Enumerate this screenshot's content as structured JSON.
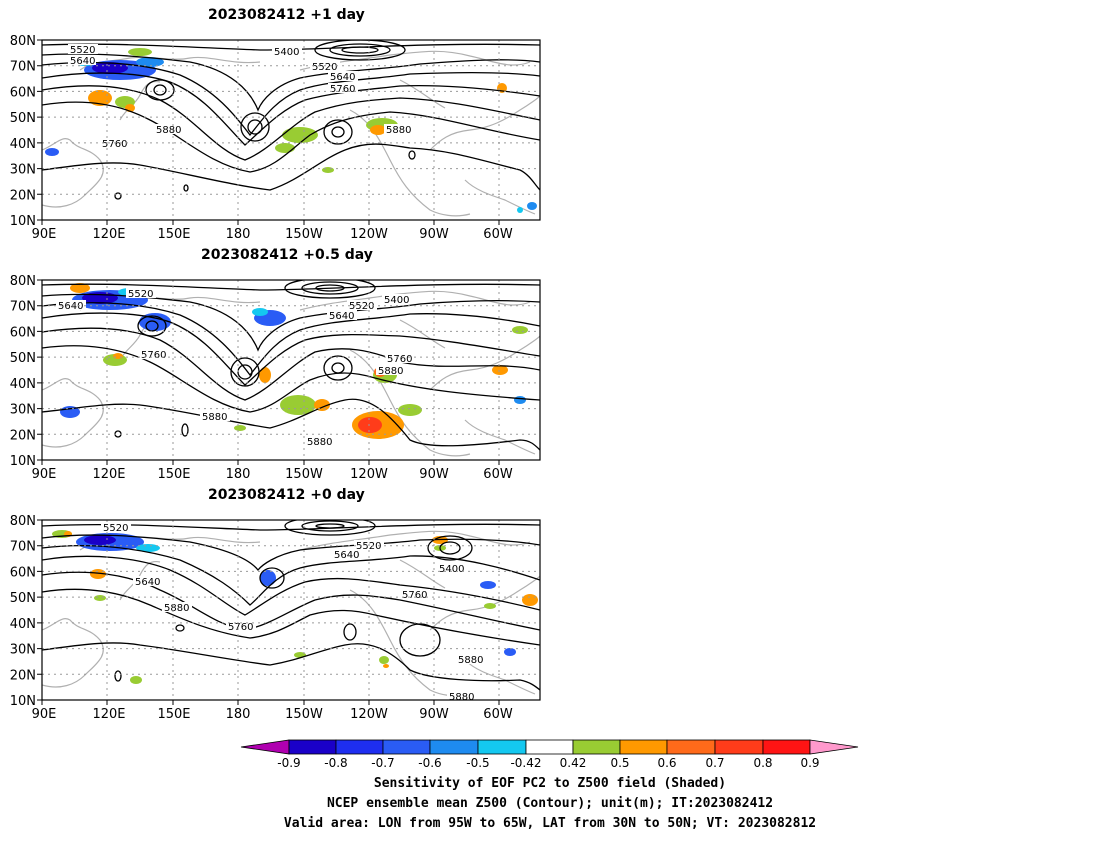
{
  "colors": {
    "coast": "#b0b0b0",
    "contour": "#000000",
    "scale": [
      "#b000b0",
      "#1a00c8",
      "#1e2ef0",
      "#2a5cf5",
      "#1e8bf0",
      "#14c8f0",
      "#ffffff",
      "#99cc33",
      "#ff9900",
      "#ff6a1a",
      "#ff3c1a",
      "#ff1414",
      "#ff99cc"
    ]
  },
  "panels": [
    {
      "title": "2023082412  +1 day",
      "contour_labels": [
        "5520",
        "5640",
        "5400",
        "5520",
        "5640",
        "5760",
        "5880",
        "5760",
        "5880"
      ]
    },
    {
      "title": "2023082412  +0.5 day",
      "contour_labels": [
        "5520",
        "5640",
        "5400",
        "5520",
        "5640",
        "5760",
        "5760",
        "5880",
        "5880",
        "5880"
      ]
    },
    {
      "title": "2023082412  +0 day",
      "contour_labels": [
        "5520",
        "5520",
        "5640",
        "5640",
        "5400",
        "5760",
        "5880",
        "5760",
        "5880",
        "5880"
      ]
    }
  ],
  "axes": {
    "y_ticks": [
      "80N",
      "70N",
      "60N",
      "50N",
      "40N",
      "30N",
      "20N",
      "10N"
    ],
    "x_ticks": [
      "90E",
      "120E",
      "150E",
      "180",
      "150W",
      "120W",
      "90W",
      "60W"
    ]
  },
  "colorbar": {
    "ticks": [
      "-0.9",
      "-0.8",
      "-0.7",
      "-0.6",
      "-0.5",
      "-0.42",
      "0.42",
      "0.5",
      "0.6",
      "0.7",
      "0.8",
      "0.9"
    ]
  },
  "caption": {
    "line1": "Sensitivity of EOF PC2 to Z500 field (Shaded)",
    "line2": "NCEP ensemble mean Z500 (Contour); unit(m); IT:2023082412",
    "line3": "Valid area: LON from 95W to 65W, LAT from 30N to 50N; VT: 2023082812"
  }
}
